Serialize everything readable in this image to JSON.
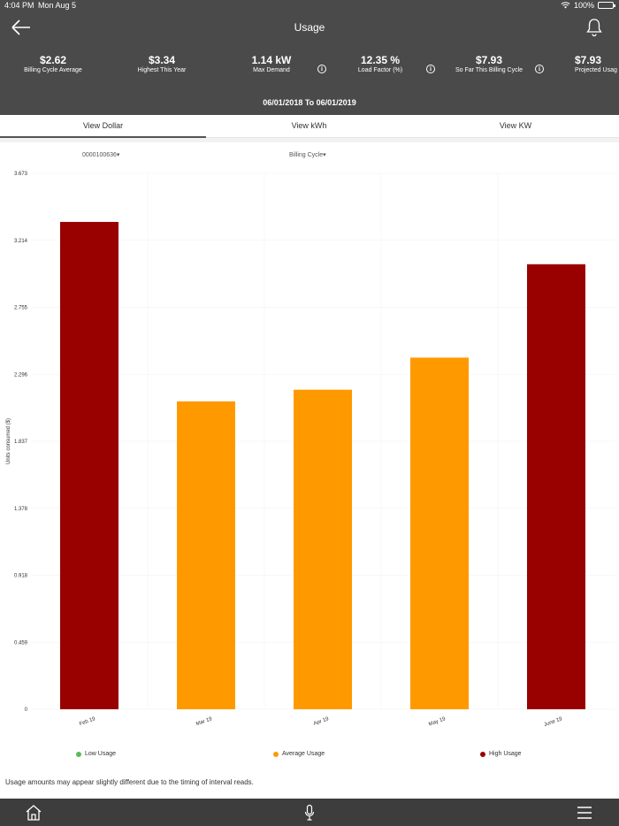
{
  "status_bar": {
    "time": "4:04 PM",
    "date": "Mon Aug 5",
    "battery": "100%"
  },
  "header": {
    "title": "Usage",
    "stats": [
      {
        "value": "$2.62",
        "label": "Billing Cycle Average"
      },
      {
        "value": "$3.34",
        "label": "Highest This Year"
      },
      {
        "value": "1.14 kW",
        "label": "Max Demand"
      },
      {
        "value": "12.35 %",
        "label": "Load Factor (%)"
      },
      {
        "value": "$7.93",
        "label": "So Far This Billing Cycle"
      },
      {
        "value": "$7.93",
        "label": "Projected Usag"
      }
    ],
    "info_icon_glyph": "i",
    "date_range": "06/01/2018 To 06/01/2019"
  },
  "tabs": [
    {
      "label": "View Dollar",
      "active": true
    },
    {
      "label": "View kWh",
      "active": false
    },
    {
      "label": "View KW",
      "active": false
    }
  ],
  "filters": {
    "account": "0000100636▾",
    "period": "Billing Cycle▾"
  },
  "chart_data": {
    "type": "bar",
    "categories": [
      "Feb 19",
      "Mar 19",
      "Apr 19",
      "May 19",
      "June 19"
    ],
    "values": [
      3.34,
      2.11,
      2.19,
      2.41,
      3.05
    ],
    "levels": [
      "High Usage",
      "Average Usage",
      "Average Usage",
      "Average Usage",
      "High Usage"
    ],
    "ylabel": "Units consumed ($)",
    "yticks": [
      "0",
      "0.459",
      "0.918",
      "1.378",
      "1.837",
      "2.296",
      "2.755",
      "3.214",
      "3.673"
    ],
    "ylim": [
      0,
      3.673
    ],
    "grid": true
  },
  "legend": [
    {
      "label": "Low Usage",
      "color": "#5cb85c"
    },
    {
      "label": "Average Usage",
      "color": "#ff9900"
    },
    {
      "label": "High Usage",
      "color": "#990000"
    }
  ],
  "disclaimer": "Usage amounts may appear slightly different due to the timing of interval reads.",
  "footer": {
    "items": [
      "home-icon",
      "microphone-icon",
      "menu-icon"
    ]
  }
}
